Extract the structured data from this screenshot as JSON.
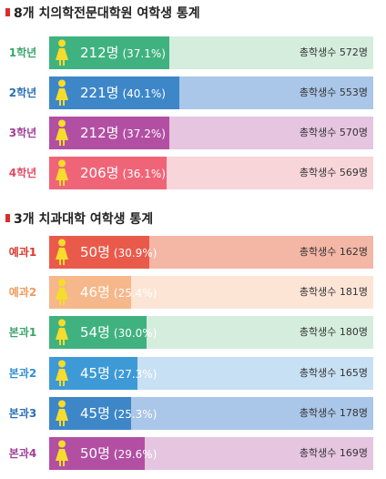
{
  "chart_data": [
    {
      "type": "bar",
      "title": "8개 치의학전문대학원 여학생 통계",
      "categories": [
        "1학년",
        "2학년",
        "3학년",
        "4학년"
      ],
      "series": [
        {
          "values": [
            212,
            221,
            212,
            206
          ],
          "count_labels": [
            "212명",
            "221명",
            "212명",
            "206명"
          ],
          "percent_labels": [
            "(37.1%)",
            "(40.1%)",
            "(37.2%)",
            "(36.1%)"
          ],
          "percents": [
            37.1,
            40.1,
            37.2,
            36.1
          ]
        }
      ],
      "totals": [
        572,
        553,
        570,
        569
      ],
      "total_labels": [
        "총학생수 572명",
        "총학생수 553명",
        "총학생수 570명",
        "총학생수 569명"
      ],
      "colors": {
        "fill": [
          "#3fb27f",
          "#3d86c8",
          "#b24fa3",
          "#f06478"
        ],
        "track": [
          "#d5eddd",
          "#aac6e8",
          "#e5c5e0",
          "#f7d5d9"
        ],
        "label": [
          "#3aa56b",
          "#2a6fb6",
          "#a03f96",
          "#e04c64"
        ]
      }
    },
    {
      "type": "bar",
      "title": "3개 치과대학 여학생 통계",
      "categories": [
        "예과1",
        "예과2",
        "본과1",
        "본과2",
        "본과3",
        "본과4"
      ],
      "series": [
        {
          "values": [
            50,
            46,
            54,
            45,
            45,
            50
          ],
          "count_labels": [
            "50명",
            "46명",
            "54명",
            "45명",
            "45명",
            "50명"
          ],
          "percent_labels": [
            "(30.9%)",
            "(25.4%)",
            "(30.0%)",
            "(27.3%)",
            "(25.3%)",
            "(29.6%)"
          ],
          "percents": [
            30.9,
            25.4,
            30.0,
            27.3,
            25.3,
            29.6
          ]
        }
      ],
      "totals": [
        162,
        181,
        180,
        165,
        178,
        169
      ],
      "total_labels": [
        "총학생수 162명",
        "총학생수 181명",
        "총학생수 180명",
        "총학생수 165명",
        "총학생수 178명",
        "총학생수 169명"
      ],
      "colors": {
        "fill": [
          "#ea5a4b",
          "#f6b78a",
          "#3fb27f",
          "#3d9ad6",
          "#3d86c8",
          "#b24fa3"
        ],
        "track": [
          "#f4b6a5",
          "#fde5d6",
          "#d5eddd",
          "#c8e0f4",
          "#aac6e8",
          "#e5c5e0"
        ],
        "label": [
          "#d8392d",
          "#f09a5b",
          "#3aa56b",
          "#2f8fd0",
          "#2a6fb6",
          "#a03f96"
        ]
      }
    }
  ],
  "icon": {
    "name": "female-student-icon",
    "color": "#f6dc2c"
  }
}
